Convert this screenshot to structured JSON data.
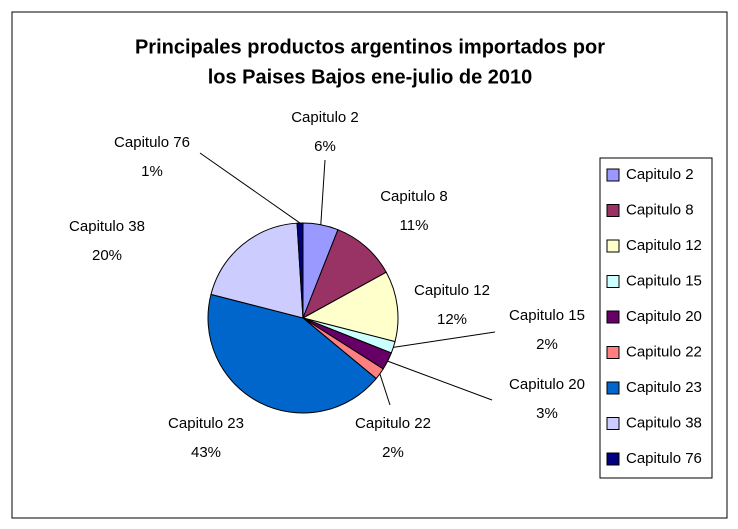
{
  "chart_data": {
    "type": "pie",
    "title": [
      "Principales productos argentinos importados por",
      "los Paises Bajos ene-julio de 2010"
    ],
    "categories": [
      "Capitulo 2",
      "Capitulo 8",
      "Capitulo 12",
      "Capitulo 15",
      "Capitulo 20",
      "Capitulo 22",
      "Capitulo 23",
      "Capitulo 38",
      "Capitulo 76"
    ],
    "values": [
      6,
      11,
      12,
      2,
      3,
      2,
      43,
      20,
      1
    ],
    "value_labels": [
      "6%",
      "11%",
      "12%",
      "2%",
      "3%",
      "2%",
      "43%",
      "20%",
      "1%"
    ],
    "colors": [
      "#9999FF",
      "#993366",
      "#FFFFCC",
      "#CCFFFF",
      "#660066",
      "#FF8080",
      "#0066CC",
      "#CCCCFF",
      "#000080"
    ],
    "legend": "right"
  }
}
